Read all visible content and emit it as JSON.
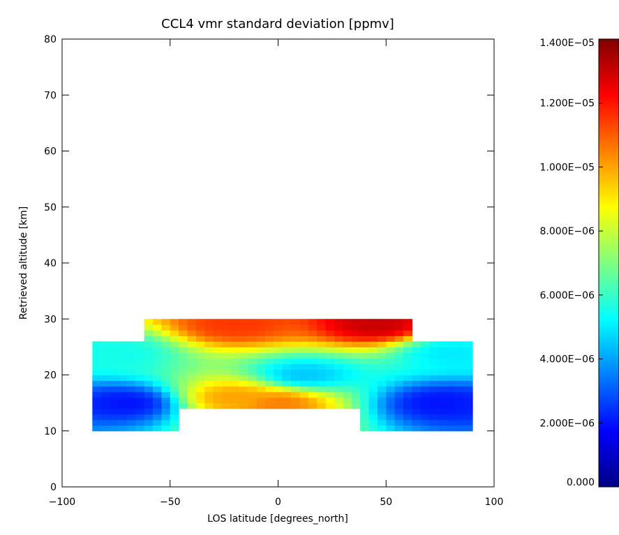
{
  "chart_data": {
    "type": "heatmap",
    "title": "CCL4 vmr standard deviation [ppmv]",
    "xlabel": "LOS latitude [degrees_north]",
    "ylabel": "Retrieved altitude [km]",
    "xlim": [
      -100,
      100
    ],
    "ylim": [
      0,
      80
    ],
    "x_ticks": [
      -100,
      -50,
      0,
      50,
      100
    ],
    "x_tick_labels": [
      "−100",
      "−50",
      "0",
      "50",
      "100"
    ],
    "y_ticks": [
      0,
      10,
      20,
      30,
      40,
      50,
      60,
      70,
      80
    ],
    "y_tick_labels": [
      "0",
      "10",
      "20",
      "30",
      "40",
      "50",
      "60",
      "70",
      "80"
    ],
    "colorscale": "rainbow (dark blue to dark red)",
    "colorbar": {
      "range": [
        0,
        1.4e-05
      ],
      "ticks": [
        0,
        2e-06,
        4e-06,
        6e-06,
        8e-06,
        1e-05,
        1.2e-05,
        1.4e-05
      ],
      "tick_labels": [
        "0.000",
        "2.000E−06",
        "4.000E−06",
        "6.000E−06",
        "8.000E−06",
        "1.000E−05",
        "1.200E−05",
        "1.400E−05"
      ]
    },
    "lat": [
      -86,
      -82,
      -78,
      -74,
      -70,
      -66,
      -62,
      -58,
      -54,
      -50,
      -46,
      -42,
      -38,
      -34,
      -30,
      -26,
      -22,
      -18,
      -14,
      -10,
      -6,
      -2,
      2,
      6,
      10,
      14,
      18,
      22,
      26,
      30,
      34,
      38,
      42,
      46,
      50,
      54,
      58,
      62,
      66,
      70,
      74,
      78,
      82,
      86,
      90
    ],
    "alt": [
      10,
      11,
      12,
      13,
      14,
      15,
      16,
      17,
      18,
      19,
      20,
      21,
      22,
      23,
      24,
      25,
      26,
      27,
      28,
      29,
      30
    ],
    "valid_regions": [
      {
        "lat": [
          -86,
          90
        ],
        "alt": [
          10,
          26
        ]
      },
      {
        "lat": [
          -61,
          62
        ],
        "alt": [
          26,
          30
        ]
      }
    ],
    "missing_regions": [
      {
        "lat": [
          -46,
          39
        ],
        "alt": [
          10,
          14
        ]
      }
    ],
    "value_anchors": [
      {
        "lat": -70,
        "alt": 15,
        "value": 2e-06
      },
      {
        "lat": 75,
        "alt": 15,
        "value": 2e-06
      },
      {
        "lat": -20,
        "alt": 16,
        "value": 1e-05
      },
      {
        "lat": 0,
        "alt": 15,
        "value": 1.05e-05
      },
      {
        "lat": 12,
        "alt": 20,
        "value": 4.5e-06
      },
      {
        "lat": -20,
        "alt": 29,
        "value": 1.15e-05
      },
      {
        "lat": 45,
        "alt": 29,
        "value": 1.3e-05
      },
      {
        "lat": -75,
        "alt": 24,
        "value": 5.5e-06
      },
      {
        "lat": 80,
        "alt": 24,
        "value": 5e-06
      }
    ]
  }
}
